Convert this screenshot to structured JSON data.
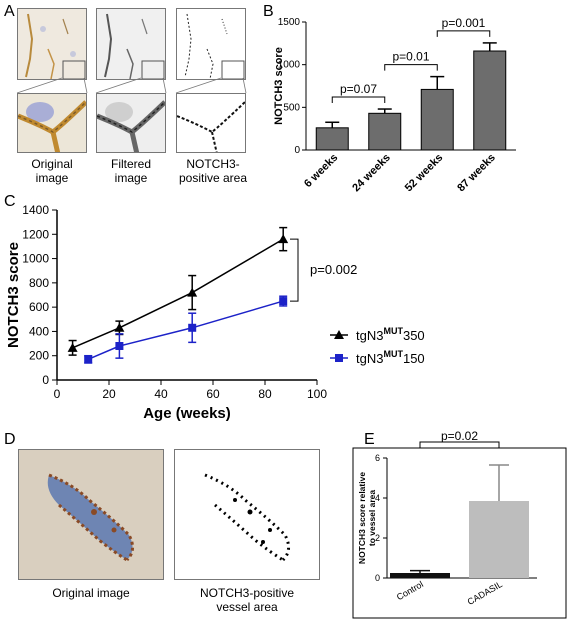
{
  "panel_letters": {
    "a": "A",
    "b": "B",
    "c": "C",
    "d": "D",
    "e": "E"
  },
  "panel_a": {
    "captions": [
      "Original\nimage",
      "Filtered\nimage",
      "NOTCH3-\npositive area"
    ]
  },
  "panel_d": {
    "captions": [
      "Original image",
      "NOTCH3-positive\nvessel area"
    ]
  },
  "chart_data": [
    {
      "id": "B",
      "type": "bar",
      "categories": [
        "6 weeks",
        "24 weeks",
        "52 weeks",
        "87 weeks"
      ],
      "values": [
        260,
        430,
        710,
        1160
      ],
      "errors": [
        65,
        50,
        150,
        95
      ],
      "ylabel": "NOTCH3 score",
      "ylim": [
        0,
        1500
      ],
      "yticks": [
        0,
        500,
        1000,
        1500
      ],
      "bar_color": "#6d6d6d",
      "annotations": [
        {
          "text": "p=0.07",
          "from": 0,
          "to": 1
        },
        {
          "text": "p=0.01",
          "from": 1,
          "to": 2
        },
        {
          "text": "p=0.001",
          "from": 2,
          "to": 3
        }
      ]
    },
    {
      "id": "C",
      "type": "line",
      "xlabel": "Age (weeks)",
      "ylabel": "NOTCH3 score",
      "xlim": [
        0,
        100
      ],
      "ylim": [
        0,
        1400
      ],
      "xticks": [
        0,
        20,
        40,
        60,
        80,
        100
      ],
      "yticks": [
        0,
        200,
        400,
        600,
        800,
        1000,
        1200,
        1400
      ],
      "series": [
        {
          "name": "tgN3MUT350",
          "legend_base": "tgN3",
          "legend_sup": "MUT",
          "legend_tail": "350",
          "color": "#000000",
          "marker": "triangle",
          "x": [
            6,
            24,
            52,
            87
          ],
          "y": [
            265,
            430,
            720,
            1160
          ],
          "err": [
            60,
            55,
            140,
            95
          ]
        },
        {
          "name": "tgN3MUT150",
          "legend_base": "tgN3",
          "legend_sup": "MUT",
          "legend_tail": "150",
          "color": "#1c22c8",
          "marker": "square",
          "x": [
            12,
            24,
            52,
            87
          ],
          "y": [
            170,
            280,
            430,
            650
          ],
          "err": [
            30,
            100,
            120,
            40
          ]
        }
      ],
      "annotation": "p=0.002"
    },
    {
      "id": "E",
      "type": "bar",
      "categories": [
        "Control",
        "CADASIL"
      ],
      "values": [
        0.25,
        3.85
      ],
      "errors": [
        0.12,
        1.8
      ],
      "colors": [
        "#111111",
        "#bdbdbd"
      ],
      "ylabel_lines": [
        "NOTCH3 score relative",
        "to vessel area"
      ],
      "ylim": [
        0,
        6
      ],
      "yticks": [
        0,
        2,
        4,
        6
      ],
      "annotation": "p=0.02"
    }
  ]
}
